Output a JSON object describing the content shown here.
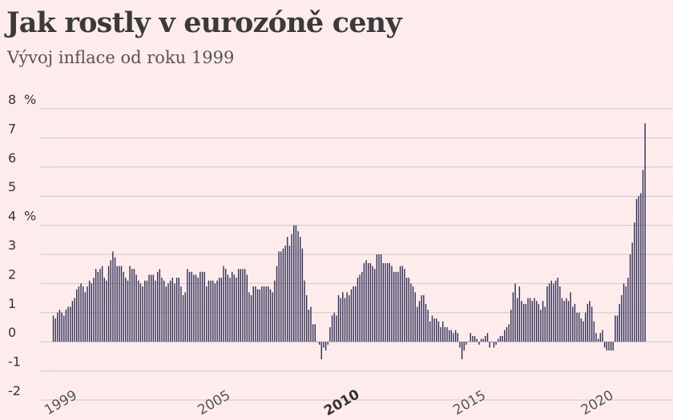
{
  "header": {
    "title": "Jak rostly v eurozóně ceny",
    "subtitle": "Vývoj inflace od roku 1999"
  },
  "colors": {
    "background": "#fdeceb",
    "bar": "#2d2d55",
    "grid": "#c8c8d6"
  },
  "chart_data": {
    "type": "bar",
    "title": "Jak rostly v eurozóně ceny",
    "subtitle": "Vývoj inflace od roku 1999",
    "ylabel_unit": "%",
    "ylim": [
      -2,
      8
    ],
    "y_ticks": [
      "8",
      "7",
      "6",
      "5",
      "4",
      "3",
      "2",
      "1",
      "0",
      "-1",
      "-2"
    ],
    "y_unit_ticks": [
      "8",
      "4"
    ],
    "x_ticks": [
      {
        "label": "1999",
        "year": 1999,
        "bold": false
      },
      {
        "label": "2005",
        "year": 2005,
        "bold": false
      },
      {
        "label": "2010",
        "year": 2010,
        "bold": true
      },
      {
        "label": "2015",
        "year": 2015,
        "bold": false
      },
      {
        "label": "2020",
        "year": 2020,
        "bold": false
      }
    ],
    "grid": true,
    "start": "1999-01",
    "frequency": "monthly",
    "series": [
      {
        "values": [
          0.9,
          0.8,
          1.0,
          1.1,
          1.0,
          0.9,
          1.1,
          1.2,
          1.2,
          1.4,
          1.5,
          1.8,
          1.9,
          2.0,
          1.9,
          1.7,
          1.9,
          2.1,
          2.0,
          2.2,
          2.5,
          2.4,
          2.5,
          2.6,
          2.2,
          2.1,
          2.6,
          2.8,
          3.1,
          2.9,
          2.6,
          2.6,
          2.6,
          2.4,
          2.2,
          2.1,
          2.6,
          2.5,
          2.5,
          2.3,
          2.1,
          2.0,
          1.9,
          2.1,
          2.1,
          2.3,
          2.3,
          2.3,
          2.1,
          2.4,
          2.5,
          2.2,
          2.1,
          1.9,
          2.0,
          2.1,
          2.2,
          2.0,
          2.2,
          2.2,
          1.9,
          1.6,
          1.7,
          2.5,
          2.4,
          2.4,
          2.3,
          2.3,
          2.2,
          2.4,
          2.4,
          2.4,
          1.9,
          2.1,
          2.1,
          2.1,
          2.0,
          2.1,
          2.2,
          2.2,
          2.6,
          2.5,
          2.3,
          2.2,
          2.4,
          2.3,
          2.2,
          2.5,
          2.5,
          2.5,
          2.5,
          2.3,
          1.7,
          1.6,
          1.9,
          1.9,
          1.8,
          1.8,
          1.9,
          1.9,
          1.9,
          1.9,
          1.8,
          1.7,
          2.1,
          2.6,
          3.1,
          3.1,
          3.2,
          3.3,
          3.6,
          3.3,
          3.7,
          4.0,
          4.0,
          3.8,
          3.6,
          3.2,
          2.1,
          1.6,
          1.1,
          1.2,
          0.6,
          0.6,
          0.0,
          -0.1,
          -0.6,
          -0.2,
          -0.3,
          -0.1,
          0.5,
          0.9,
          1.0,
          0.9,
          1.6,
          1.5,
          1.7,
          1.5,
          1.7,
          1.6,
          1.8,
          1.9,
          1.9,
          2.2,
          2.3,
          2.4,
          2.7,
          2.8,
          2.7,
          2.7,
          2.6,
          2.5,
          3.0,
          3.0,
          3.0,
          2.7,
          2.7,
          2.7,
          2.7,
          2.6,
          2.4,
          2.4,
          2.4,
          2.6,
          2.6,
          2.5,
          2.2,
          2.2,
          2.0,
          1.9,
          1.7,
          1.2,
          1.4,
          1.6,
          1.6,
          1.3,
          1.1,
          0.7,
          0.9,
          0.8,
          0.8,
          0.7,
          0.5,
          0.7,
          0.5,
          0.5,
          0.4,
          0.4,
          0.3,
          0.4,
          0.3,
          -0.2,
          -0.6,
          -0.3,
          -0.1,
          0.0,
          0.3,
          0.2,
          0.2,
          0.1,
          -0.1,
          0.1,
          0.1,
          0.2,
          0.3,
          -0.2,
          0.0,
          -0.2,
          -0.1,
          0.1,
          0.2,
          0.2,
          0.4,
          0.5,
          0.6,
          1.1,
          1.7,
          2.0,
          1.5,
          1.9,
          1.4,
          1.3,
          1.3,
          1.5,
          1.5,
          1.4,
          1.5,
          1.4,
          1.3,
          1.1,
          1.4,
          1.2,
          1.9,
          2.0,
          2.1,
          2.0,
          2.1,
          2.2,
          1.9,
          1.5,
          1.4,
          1.5,
          1.4,
          1.7,
          1.2,
          1.3,
          1.0,
          1.0,
          0.8,
          0.7,
          1.0,
          1.3,
          1.4,
          1.2,
          0.7,
          0.3,
          0.1,
          0.3,
          0.4,
          -0.2,
          -0.3,
          -0.3,
          -0.3,
          -0.3,
          0.9,
          0.9,
          1.3,
          1.6,
          2.0,
          1.9,
          2.2,
          3.0,
          3.4,
          4.1,
          4.9,
          5.0,
          5.1,
          5.9,
          7.5
        ]
      }
    ]
  }
}
